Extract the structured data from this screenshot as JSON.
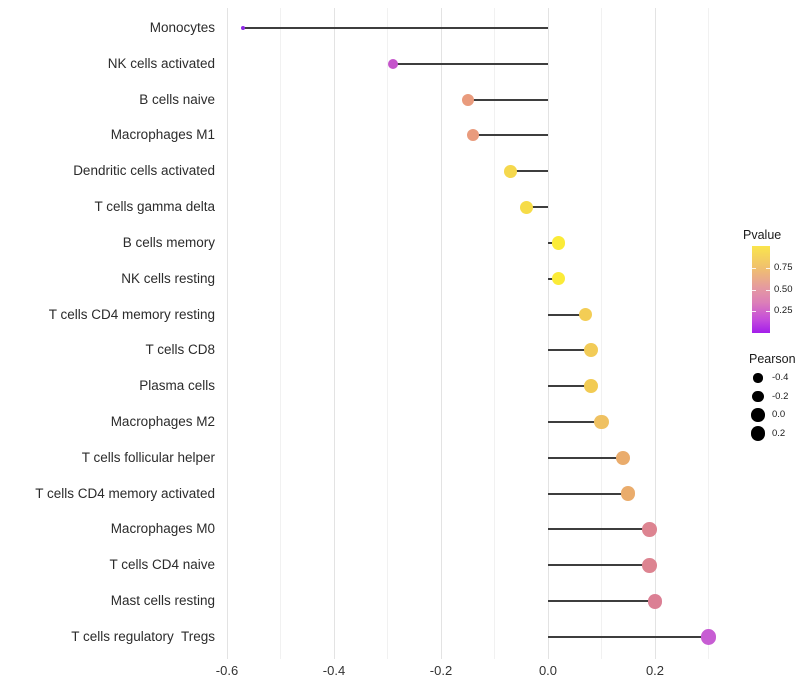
{
  "chart_data": {
    "type": "lollipop",
    "orientation": "horizontal",
    "title": "",
    "xlabel": "",
    "ylabel": "",
    "categories": [
      "Monocytes",
      "NK cells activated",
      "B cells naive",
      "Macrophages M1",
      "Dendritic cells activated",
      "T cells gamma delta",
      "B cells memory",
      "NK cells resting",
      "T cells CD4 memory resting",
      "T cells CD8",
      "Plasma cells",
      "Macrophages M2",
      "T cells follicular helper",
      "T cells CD4 memory activated",
      "Macrophages M0",
      "T cells CD4 naive",
      "Mast cells resting",
      "T cells regulatory  Tregs"
    ],
    "series": [
      {
        "name": "Pearson correlation",
        "values": [
          -0.57,
          -0.29,
          -0.15,
          -0.14,
          -0.07,
          -0.04,
          0.02,
          0.02,
          0.07,
          0.08,
          0.08,
          0.1,
          0.14,
          0.15,
          0.19,
          0.19,
          0.2,
          0.3
        ]
      }
    ],
    "point_colors": [
      "#8F2BE6",
      "#C554CB",
      "#E99B7D",
      "#E99B7D",
      "#F5D84D",
      "#F6DC48",
      "#FBEB38",
      "#FBEB38",
      "#F3CD55",
      "#F2CB57",
      "#F2CB53",
      "#EFC162",
      "#EAAC6C",
      "#EAAC6C",
      "#DD8491",
      "#DD8491",
      "#DB7F94",
      "#C75DD3"
    ],
    "x_ticks": [
      "-0.6",
      "-0.4",
      "-0.2",
      "0.0",
      "0.2"
    ],
    "x_tick_values": [
      -0.6,
      -0.4,
      -0.2,
      0.0,
      0.2
    ],
    "x_minor_tick_values": [
      -0.5,
      -0.3,
      -0.1,
      0.1,
      0.3
    ],
    "xlim": [
      -0.61,
      0.345
    ],
    "grid": true,
    "stem_color": "#3e3e3e",
    "legends": {
      "color": {
        "title": "Pvalue",
        "position": "right",
        "tick_labels": [
          "0.75",
          "0.50",
          "0.25"
        ],
        "tick_values": [
          0.75,
          0.5,
          0.25
        ],
        "range": [
          0,
          1
        ],
        "gradient_stops": [
          "#FAE54C 0%",
          "#F0C06E 25%",
          "#E59AA0 48%",
          "#DC7FB8 65%",
          "#C44BDC 85%",
          "#A31EEA 100%"
        ]
      },
      "size": {
        "title": "Pearson",
        "position": "right",
        "labels": [
          "-0.4",
          "-0.2",
          "0.0",
          "0.2"
        ],
        "values": [
          -0.4,
          -0.2,
          0.0,
          0.2
        ],
        "dot_color": "#000000"
      }
    }
  }
}
